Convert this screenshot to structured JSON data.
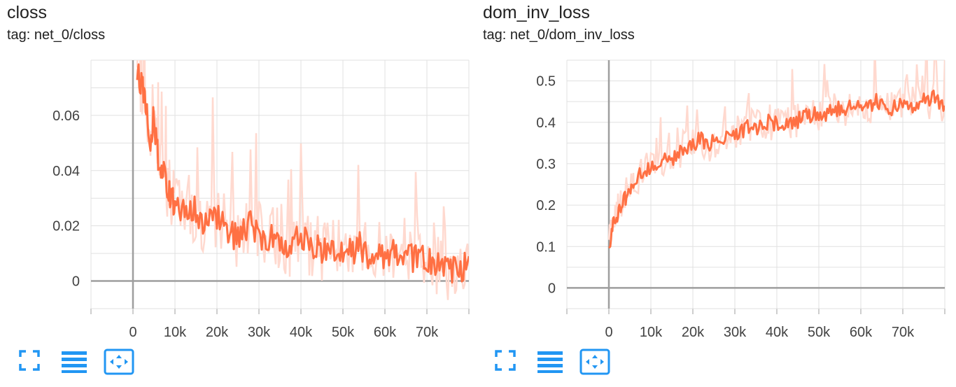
{
  "charts": [
    {
      "title": "closs",
      "tag": "tag: net_0/closs",
      "xticks": [
        "0",
        "10k",
        "20k",
        "30k",
        "40k",
        "50k",
        "60k",
        "70k"
      ],
      "yticks": [
        "0",
        "0.02",
        "0.04",
        "0.06"
      ]
    },
    {
      "title": "dom_inv_loss",
      "tag": "tag: net_0/dom_inv_loss",
      "xticks": [
        "0",
        "10k",
        "20k",
        "30k",
        "40k",
        "50k",
        "60k",
        "70k"
      ],
      "yticks": [
        "0",
        "0.1",
        "0.2",
        "0.3",
        "0.4",
        "0.5"
      ]
    }
  ],
  "chart_data": [
    {
      "type": "line",
      "title": "closs",
      "subtitle": "tag: net_0/closs",
      "xlim": [
        -10000,
        80000
      ],
      "ylim": [
        -0.01,
        0.08
      ],
      "grid": true,
      "colors": {
        "smoothed": "#ff7043",
        "raw": "#ffd9cf",
        "axis": "#9e9e9e",
        "grid": "#e0e0e0"
      },
      "series": [
        {
          "x": [
            1000,
            2000,
            3000,
            4000,
            5000,
            6000,
            7000,
            8000,
            9000,
            10000,
            12000,
            14000,
            16000,
            18000,
            20000,
            22000,
            24000,
            26000,
            28000,
            30000,
            32000,
            34000,
            36000,
            38000,
            40000,
            42000,
            44000,
            46000,
            48000,
            50000,
            52000,
            54000,
            56000,
            58000,
            60000,
            62000,
            64000,
            66000,
            68000,
            70000,
            72000,
            74000,
            76000,
            78000,
            80000
          ],
          "y": [
            0.075,
            0.072,
            0.065,
            0.05,
            0.06,
            0.045,
            0.04,
            0.035,
            0.03,
            0.028,
            0.026,
            0.027,
            0.022,
            0.02,
            0.024,
            0.021,
            0.016,
            0.018,
            0.02,
            0.017,
            0.015,
            0.016,
            0.014,
            0.013,
            0.016,
            0.014,
            0.012,
            0.011,
            0.012,
            0.012,
            0.011,
            0.013,
            0.01,
            0.011,
            0.009,
            0.012,
            0.01,
            0.009,
            0.008,
            0.008,
            0.006,
            0.005,
            0.004,
            0.005,
            0.006
          ]
        }
      ]
    },
    {
      "type": "line",
      "title": "dom_inv_loss",
      "subtitle": "tag: net_0/dom_inv_loss",
      "xlim": [
        -10000,
        80000
      ],
      "ylim": [
        -0.05,
        0.55
      ],
      "grid": true,
      "colors": {
        "smoothed": "#ff7043",
        "raw": "#ffd9cf",
        "axis": "#9e9e9e",
        "grid": "#e0e0e0"
      },
      "series": [
        {
          "x": [
            0,
            1000,
            2000,
            3000,
            4000,
            5000,
            6000,
            8000,
            10000,
            12000,
            14000,
            16000,
            18000,
            20000,
            22000,
            24000,
            26000,
            28000,
            30000,
            32000,
            34000,
            36000,
            38000,
            40000,
            42000,
            44000,
            46000,
            48000,
            50000,
            52000,
            54000,
            56000,
            58000,
            60000,
            62000,
            64000,
            66000,
            68000,
            70000,
            72000,
            74000,
            76000,
            78000,
            80000
          ],
          "y": [
            0.1,
            0.15,
            0.18,
            0.2,
            0.22,
            0.24,
            0.26,
            0.28,
            0.29,
            0.3,
            0.31,
            0.32,
            0.33,
            0.35,
            0.36,
            0.35,
            0.36,
            0.37,
            0.37,
            0.38,
            0.39,
            0.39,
            0.4,
            0.4,
            0.4,
            0.4,
            0.41,
            0.42,
            0.42,
            0.42,
            0.43,
            0.43,
            0.44,
            0.44,
            0.44,
            0.45,
            0.43,
            0.44,
            0.45,
            0.44,
            0.45,
            0.45,
            0.46,
            0.43
          ]
        }
      ]
    }
  ],
  "toolbar": {
    "icons": [
      "fullscreen-icon",
      "data-table-icon",
      "fit-domain-icon"
    ],
    "accent": "#2196f3"
  }
}
